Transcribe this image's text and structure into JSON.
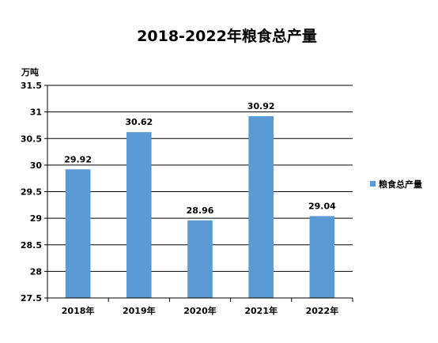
{
  "chart_data": {
    "type": "bar",
    "title": "2018-2022年粮食总产量",
    "ylabel": "万吨",
    "xlabel": "",
    "categories": [
      "2018年",
      "2019年",
      "2020年",
      "2021年",
      "2022年"
    ],
    "series": [
      {
        "name": "粮食总产量",
        "values": [
          29.92,
          30.62,
          28.96,
          30.92,
          29.04
        ],
        "labels": [
          "29.92",
          "30.62",
          "28.96",
          "30.92",
          "29.04"
        ],
        "color": "#5B9BD5"
      }
    ],
    "ylim": [
      27.5,
      31.5
    ],
    "yticks": [
      "27.5",
      "28",
      "28.5",
      "29",
      "29.5",
      "30",
      "30.5",
      "31",
      "31.5"
    ],
    "grid": true,
    "legend": "right"
  }
}
